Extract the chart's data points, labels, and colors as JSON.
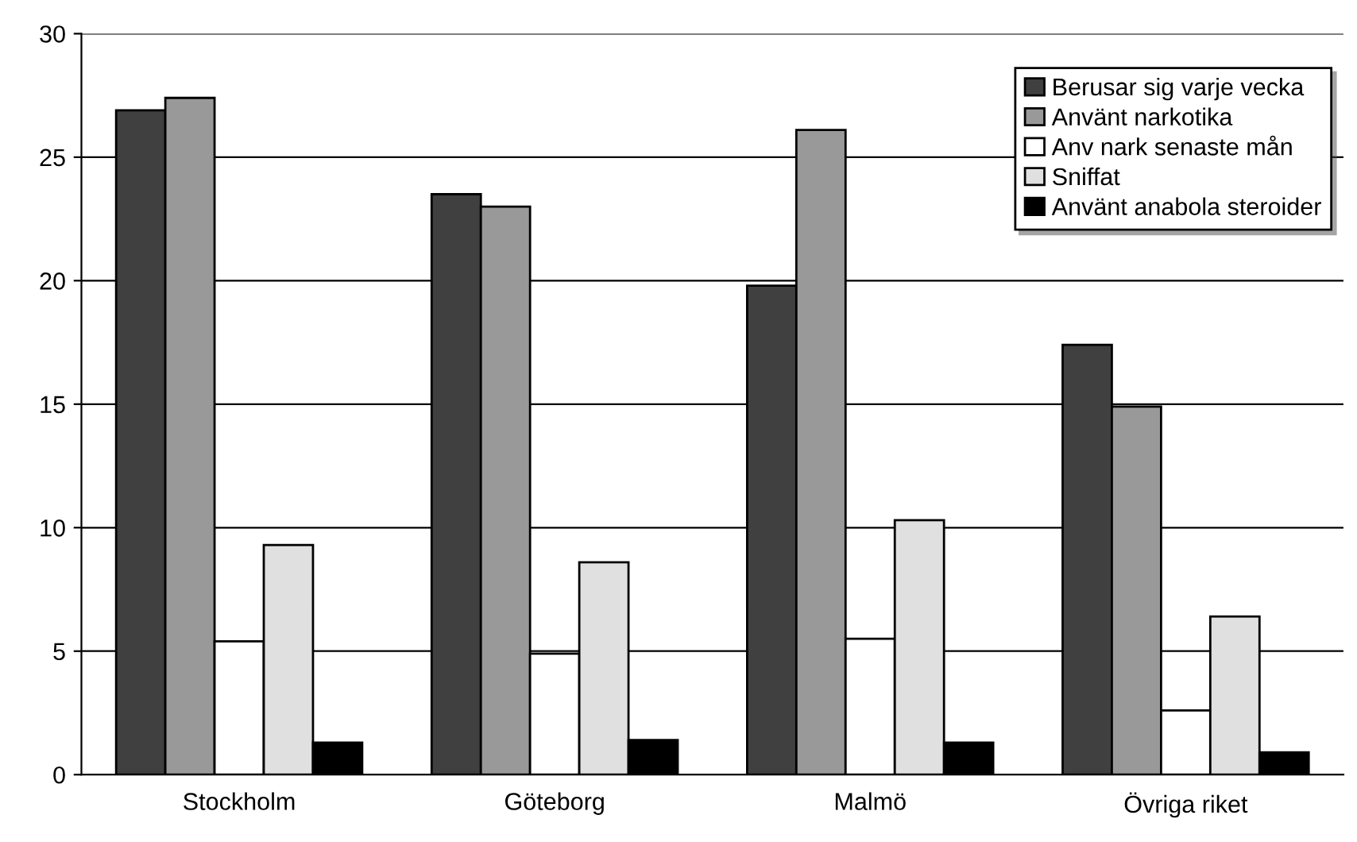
{
  "chart_data": {
    "type": "bar",
    "categories": [
      "Stockholm",
      "Göteborg",
      "Malmö",
      "Övriga riket"
    ],
    "series": [
      {
        "name": "Berusar sig varje vecka",
        "color": "#404040",
        "values": [
          26.9,
          23.5,
          19.8,
          17.4
        ]
      },
      {
        "name": "Använt narkotika",
        "color": "#999999",
        "values": [
          27.4,
          23.0,
          26.1,
          14.9
        ]
      },
      {
        "name": "Anv nark senaste mån",
        "color": "#ffffff",
        "values": [
          5.4,
          4.9,
          5.5,
          2.6
        ]
      },
      {
        "name": "Sniffat",
        "color": "#e0e0e0",
        "values": [
          9.3,
          8.6,
          10.3,
          6.4
        ]
      },
      {
        "name": "Använt anabola steroider",
        "color": "#000000",
        "values": [
          1.3,
          1.4,
          1.3,
          0.9
        ]
      }
    ],
    "ylim": [
      0,
      30
    ],
    "yticks": [
      0,
      5,
      10,
      15,
      20,
      25,
      30
    ],
    "grid": "y",
    "legend": "top right"
  }
}
